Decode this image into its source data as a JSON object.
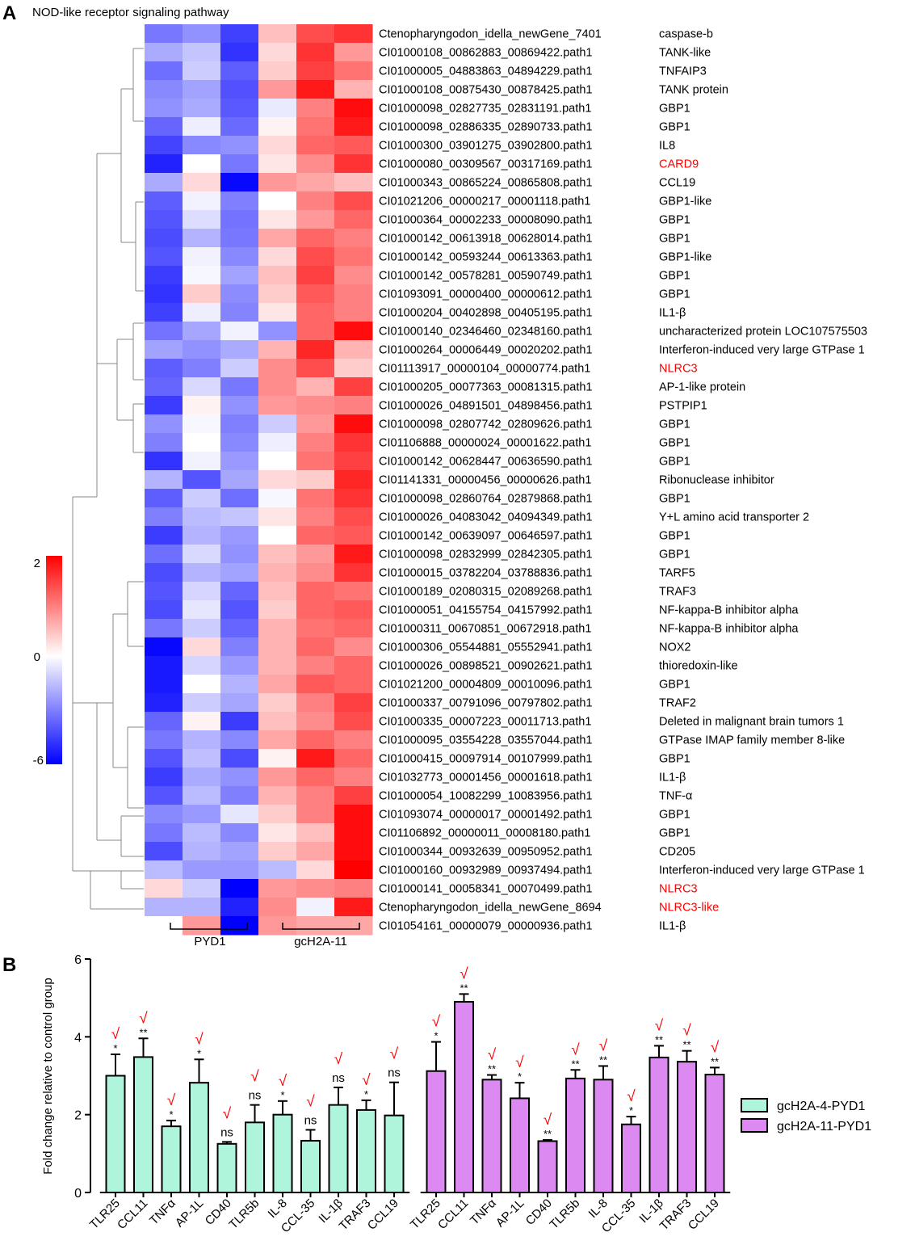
{
  "panel_a": {
    "label": "A",
    "title": "NOD-like receptor signaling pathway",
    "groups": [
      "PYD1",
      "gcH2A-11"
    ],
    "scale_ticks": [
      "2",
      "0",
      "-6"
    ],
    "colors": {
      "high": "#ff0000",
      "mid": "#ffffff",
      "low": "#0000ff",
      "highlight": "#ff0000"
    },
    "rows": [
      {
        "id": "Ctenopharyngodon_idella_newGene_7401",
        "gene": "caspase-b",
        "hl": false
      },
      {
        "id": "CI01000108_00862883_00869422.path1",
        "gene": "TANK-like",
        "hl": false
      },
      {
        "id": "CI01000005_04883863_04894229.path1",
        "gene": "TNFAIP3",
        "hl": false
      },
      {
        "id": "CI01000108_00875430_00878425.path1",
        "gene": "TANK protein",
        "hl": false
      },
      {
        "id": "CI01000098_02827735_02831191.path1",
        "gene": "GBP1",
        "hl": false
      },
      {
        "id": "CI01000098_02886335_02890733.path1",
        "gene": "GBP1",
        "hl": false
      },
      {
        "id": "CI01000300_03901275_03902800.path1",
        "gene": "IL8",
        "hl": false
      },
      {
        "id": "CI01000080_00309567_00317169.path1",
        "gene": "CARD9",
        "hl": true
      },
      {
        "id": "CI01000343_00865224_00865808.path1",
        "gene": "CCL19",
        "hl": false
      },
      {
        "id": "CI01021206_00000217_00001118.path1",
        "gene": "GBP1-like",
        "hl": false
      },
      {
        "id": "CI01000364_00002233_00008090.path1",
        "gene": "GBP1",
        "hl": false
      },
      {
        "id": "CI01000142_00613918_00628014.path1",
        "gene": "GBP1",
        "hl": false
      },
      {
        "id": "CI01000142_00593244_00613363.path1",
        "gene": "GBP1-like",
        "hl": false
      },
      {
        "id": "CI01000142_00578281_00590749.path1",
        "gene": "GBP1",
        "hl": false
      },
      {
        "id": "CI01093091_00000400_00000612.path1",
        "gene": "GBP1",
        "hl": false
      },
      {
        "id": "CI01000204_00402898_00405195.path1",
        "gene": "IL1-β",
        "hl": false
      },
      {
        "id": "CI01000140_02346460_02348160.path1",
        "gene": "uncharacterized protein LOC107575503",
        "hl": false
      },
      {
        "id": "CI01000264_00006449_00020202.path1",
        "gene": "Interferon-induced very large GTPase 1",
        "hl": false
      },
      {
        "id": "CI01113917_00000104_00000774.path1",
        "gene": "NLRC3",
        "hl": true
      },
      {
        "id": "CI01000205_00077363_00081315.path1",
        "gene": "AP-1-like protein",
        "hl": false
      },
      {
        "id": "CI01000026_04891501_04898456.path1",
        "gene": "PSTPIP1",
        "hl": false
      },
      {
        "id": "CI01000098_02807742_02809626.path1",
        "gene": "GBP1",
        "hl": false
      },
      {
        "id": "CI01106888_00000024_00001622.path1",
        "gene": "GBP1",
        "hl": false
      },
      {
        "id": "CI01000142_00628447_00636590.path1",
        "gene": "GBP1",
        "hl": false
      },
      {
        "id": "CI01141331_00000456_00000626.path1",
        "gene": "Ribonuclease inhibitor",
        "hl": false
      },
      {
        "id": "CI01000098_02860764_02879868.path1",
        "gene": "GBP1",
        "hl": false
      },
      {
        "id": "CI01000026_04083042_04094349.path1",
        "gene": "Y+L amino acid transporter 2",
        "hl": false
      },
      {
        "id": "CI01000142_00639097_00646597.path1",
        "gene": "GBP1",
        "hl": false
      },
      {
        "id": "CI01000098_02832999_02842305.path1",
        "gene": "GBP1",
        "hl": false
      },
      {
        "id": "CI01000015_03782204_03788836.path1",
        "gene": "TARF5",
        "hl": false
      },
      {
        "id": "CI01000189_02080315_02089268.path1",
        "gene": "TRAF3",
        "hl": false
      },
      {
        "id": "CI01000051_04155754_04157992.path1",
        "gene": "NF-kappa-B inhibitor alpha",
        "hl": false
      },
      {
        "id": "CI01000311_00670851_00672918.path1",
        "gene": "NF-kappa-B inhibitor alpha",
        "hl": false
      },
      {
        "id": "CI01000306_05544881_05552941.path1",
        "gene": "NOX2",
        "hl": false
      },
      {
        "id": "CI01000026_00898521_00902621.path1",
        "gene": "thioredoxin-like",
        "hl": false
      },
      {
        "id": "CI01021200_00004809_00010096.path1",
        "gene": "GBP1",
        "hl": false
      },
      {
        "id": "CI01000337_00791096_00797802.path1",
        "gene": "TRAF2",
        "hl": false
      },
      {
        "id": "CI01000335_00007223_00011713.path1",
        "gene": "Deleted in malignant brain tumors 1",
        "hl": false
      },
      {
        "id": "CI01000095_03554228_03557044.path1",
        "gene": "GTPase IMAP family member 8-like",
        "hl": false
      },
      {
        "id": "CI01000415_00097914_00107999.path1",
        "gene": "GBP1",
        "hl": false
      },
      {
        "id": "CI01032773_00001456_00001618.path1",
        "gene": "IL1-β",
        "hl": false
      },
      {
        "id": "CI01000054_10082299_10083956.path1",
        "gene": "TNF-α",
        "hl": false
      },
      {
        "id": "CI01093074_00000017_00001492.path1",
        "gene": "GBP1",
        "hl": false
      },
      {
        "id": "CI01106892_00000011_00008180.path1",
        "gene": "GBP1",
        "hl": false
      },
      {
        "id": "CI01000344_00932639_00950952.path1",
        "gene": "CD205",
        "hl": false
      },
      {
        "id": "CI01000160_00932989_00937494.path1",
        "gene": "Interferon-induced very large GTPase 1",
        "hl": false
      },
      {
        "id": "CI01000141_00058341_00070499.path1",
        "gene": "NLRC3",
        "hl": true
      },
      {
        "id": "Ctenopharyngodon_idella_newGene_8694",
        "gene": "NLRC3-like",
        "hl": true
      },
      {
        "id": "CI01054161_00000079_00000936.path1",
        "gene": "IL1-β",
        "hl": false
      }
    ],
    "matrix": [
      [
        -3.2,
        -2.6,
        -4.5,
        0.5,
        1.4,
        1.6
      ],
      [
        -2.0,
        -1.4,
        -4.8,
        0.3,
        1.6,
        0.8
      ],
      [
        -3.4,
        -1.2,
        -3.8,
        0.4,
        1.5,
        1.1
      ],
      [
        -2.8,
        -2.2,
        -4.1,
        0.8,
        1.8,
        0.6
      ],
      [
        -2.6,
        -2.0,
        -3.9,
        -0.5,
        1.0,
        1.9
      ],
      [
        -3.6,
        -0.4,
        -3.5,
        0.1,
        1.1,
        1.8
      ],
      [
        -4.4,
        -2.8,
        -2.6,
        0.3,
        1.2,
        1.3
      ],
      [
        -5.2,
        0.0,
        -3.2,
        0.2,
        0.9,
        1.6
      ],
      [
        -2.0,
        0.3,
        -5.8,
        0.8,
        0.7,
        0.5
      ],
      [
        -3.8,
        -0.3,
        -3.0,
        0.0,
        1.0,
        1.4
      ],
      [
        -4.0,
        -0.8,
        -3.3,
        0.2,
        0.8,
        1.2
      ],
      [
        -4.2,
        -1.8,
        -3.2,
        0.7,
        1.2,
        1.0
      ],
      [
        -4.0,
        -0.3,
        -2.8,
        0.3,
        1.4,
        1.1
      ],
      [
        -4.6,
        -0.2,
        -2.2,
        0.5,
        1.5,
        0.9
      ],
      [
        -4.8,
        0.4,
        -2.7,
        0.4,
        1.3,
        1.0
      ],
      [
        -4.5,
        -0.4,
        -2.9,
        0.2,
        1.2,
        1.0
      ],
      [
        -3.3,
        -2.1,
        -0.3,
        -2.6,
        1.2,
        1.9
      ],
      [
        -2.2,
        -2.6,
        -2.0,
        0.6,
        1.7,
        0.6
      ],
      [
        -3.8,
        -3.0,
        -1.2,
        0.9,
        1.4,
        0.4
      ],
      [
        -3.6,
        -0.9,
        -3.2,
        0.9,
        0.6,
        1.5
      ],
      [
        -4.6,
        0.1,
        -2.6,
        0.8,
        0.9,
        1.0
      ],
      [
        -2.6,
        -0.2,
        -3.0,
        -1.2,
        0.8,
        1.9
      ],
      [
        -3.0,
        0.0,
        -2.8,
        -0.4,
        1.0,
        1.6
      ],
      [
        -4.8,
        -0.3,
        -2.4,
        0.0,
        1.1,
        1.5
      ],
      [
        -1.8,
        -4.0,
        -2.1,
        0.3,
        0.4,
        1.7
      ],
      [
        -3.8,
        -1.2,
        -3.4,
        -0.2,
        1.1,
        1.6
      ],
      [
        -3.0,
        -1.6,
        -1.4,
        0.2,
        1.0,
        1.4
      ],
      [
        -4.6,
        -1.8,
        -2.4,
        0.0,
        1.2,
        1.3
      ],
      [
        -3.4,
        -0.9,
        -2.6,
        0.5,
        0.8,
        1.8
      ],
      [
        -4.2,
        -1.8,
        -2.2,
        0.6,
        0.9,
        1.6
      ],
      [
        -4.0,
        -1.0,
        -3.6,
        0.5,
        1.2,
        1.1
      ],
      [
        -4.2,
        -0.6,
        -4.0,
        0.4,
        1.2,
        1.3
      ],
      [
        -3.2,
        -1.2,
        -3.6,
        0.6,
        1.1,
        1.2
      ],
      [
        -5.8,
        0.3,
        -3.0,
        0.6,
        1.2,
        0.9
      ],
      [
        -5.4,
        -1.0,
        -2.4,
        0.6,
        1.0,
        1.2
      ],
      [
        -5.4,
        0.0,
        -1.8,
        0.7,
        1.3,
        1.2
      ],
      [
        -5.2,
        -1.2,
        -2.1,
        0.4,
        1.0,
        1.5
      ],
      [
        -3.6,
        0.1,
        -4.6,
        0.5,
        0.9,
        1.4
      ],
      [
        -3.2,
        -1.8,
        -2.8,
        0.7,
        1.2,
        1.0
      ],
      [
        -4.0,
        -1.5,
        -4.2,
        0.1,
        1.8,
        1.2
      ],
      [
        -4.6,
        -2.0,
        -2.6,
        0.8,
        1.2,
        1.0
      ],
      [
        -4.0,
        -1.6,
        -3.0,
        0.6,
        1.0,
        1.5
      ],
      [
        -2.8,
        -2.4,
        -0.6,
        0.4,
        1.0,
        1.9
      ],
      [
        -3.2,
        -1.6,
        -2.8,
        0.2,
        0.5,
        1.9
      ],
      [
        -4.2,
        -1.8,
        -2.2,
        0.4,
        0.7,
        1.9
      ],
      [
        -1.6,
        -2.4,
        -2.4,
        -1.6,
        0.3,
        2.0
      ],
      [
        0.3,
        -1.2,
        -6.0,
        0.8,
        0.9,
        1.0
      ],
      [
        -1.8,
        -1.8,
        -5.2,
        0.9,
        -0.3,
        1.8
      ],
      [
        0.0,
        0.8,
        -6.0,
        0.8,
        0.7,
        0.7
      ]
    ]
  },
  "panel_b": {
    "label": "B",
    "chart_data": {
      "type": "bar",
      "ylabel": "Fold change relative to control group",
      "ylim": [
        0,
        6
      ],
      "yticks": [
        "0",
        "2",
        "4",
        "6"
      ],
      "check_mark": "√",
      "groups": [
        {
          "name": "gcH2A-4-PYD1",
          "color": "#aef5dc",
          "categories": [
            "TLR25",
            "CCL11",
            "TNFα",
            "AP-1L",
            "CD40",
            "TLR5b",
            "IL-8",
            "CCL-35",
            "IL-1β",
            "TRAF3",
            "CCL19"
          ],
          "values": [
            3.0,
            3.48,
            1.7,
            2.82,
            1.25,
            1.8,
            2.0,
            1.33,
            2.25,
            2.12,
            1.98
          ],
          "errors": [
            0.55,
            0.48,
            0.15,
            0.6,
            0.05,
            0.45,
            0.35,
            0.28,
            0.45,
            0.25,
            0.85
          ],
          "sig": [
            "*",
            "**",
            "*",
            "*",
            "ns",
            "ns",
            "*",
            "ns",
            "ns",
            "*",
            "ns"
          ]
        },
        {
          "name": "gcH2A-11-PYD1",
          "color": "#dc8af2",
          "categories": [
            "TLR25",
            "CCL11",
            "TNFα",
            "AP-1L",
            "CD40",
            "TLR5b",
            "IL-8",
            "CCL-35",
            "IL-1β",
            "TRAF3",
            "CCL19"
          ],
          "values": [
            3.12,
            4.9,
            2.9,
            2.42,
            1.32,
            2.93,
            2.9,
            1.75,
            3.47,
            3.36,
            3.03
          ],
          "errors": [
            0.75,
            0.2,
            0.12,
            0.4,
            0.03,
            0.22,
            0.35,
            0.2,
            0.3,
            0.28,
            0.18
          ],
          "sig": [
            "*",
            "**",
            "**",
            "*",
            "**",
            "**",
            "**",
            "*",
            "**",
            "**",
            "**"
          ]
        }
      ],
      "legend": [
        "gcH2A-4-PYD1",
        "gcH2A-11-PYD1"
      ]
    }
  }
}
